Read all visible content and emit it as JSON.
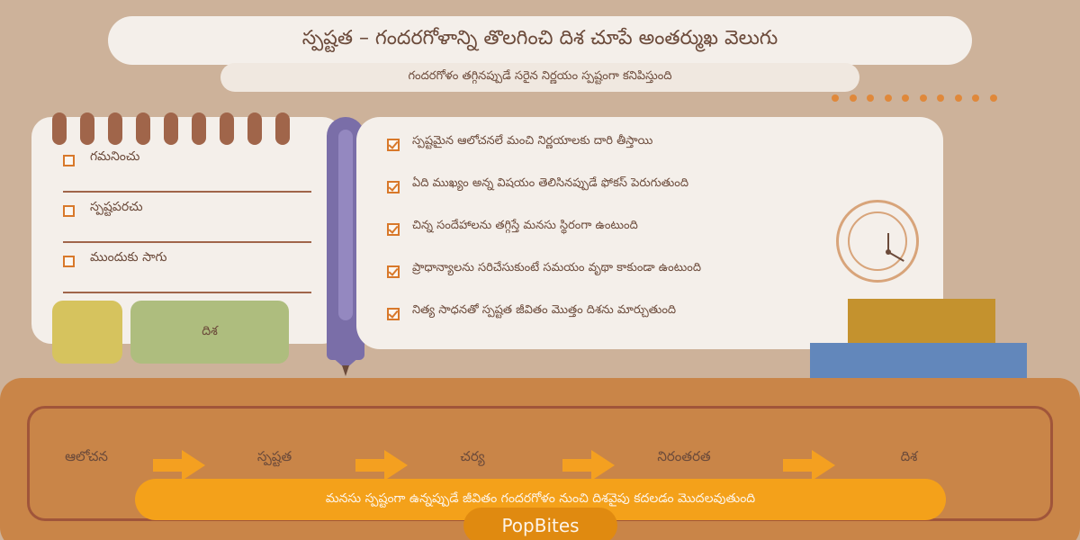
{
  "header": {
    "title": "స్పష్టత – గందరగోళాన్ని తొలగించి దిశ చూపే అంతర్ముఖ వెలుగు",
    "subtitle": "గందరగోళం తగ్గినప్పుడే సరైన నిర్ణయం స్పష్టంగా కనిపిస్తుంది"
  },
  "notepad": {
    "items": [
      {
        "label": "గమనించు"
      },
      {
        "label": "స్పష్టపరచు"
      },
      {
        "label": "ముందుకు సాగు"
      }
    ],
    "green_block_label": "దిశ"
  },
  "checklist": {
    "items": [
      {
        "text": "స్పష్టమైన ఆలోచనలే మంచి నిర్ణయాలకు దారి తీస్తాయి"
      },
      {
        "text": "ఏది ముఖ్యం అన్న విషయం తెలిసినప్పుడే ఫోకస్ పెరుగుతుంది"
      },
      {
        "text": "చిన్న సందేహాలను తగ్గిస్తే మనసు స్థిరంగా ఉంటుంది"
      },
      {
        "text": "ప్రాధాన్యాలను సరిచేసుకుంటే సమయం వృథా కాకుండా ఉంటుంది"
      },
      {
        "text": "నిత్య సాధనతో స్పష్టత జీవితం మొత్తం దిశను మార్చుతుంది"
      }
    ]
  },
  "flow": {
    "steps": [
      {
        "label": "ఆలోచన"
      },
      {
        "label": "స్పష్టత"
      },
      {
        "label": "చర్య"
      },
      {
        "label": "నిరంతరత"
      },
      {
        "label": "దిశ"
      }
    ],
    "banner": "మనసు స్పష్టంగా ఉన్నప్పుడే జీవితం గందరగోళం నుంచి దిశవైపు కదలడం మొదలవుతుంది"
  },
  "brand": "PopBites",
  "colors": {
    "background": "#cdb29a",
    "accent_orange": "#f4a11a",
    "pencil": "#7a6ea8",
    "text": "#6b4a3a"
  }
}
